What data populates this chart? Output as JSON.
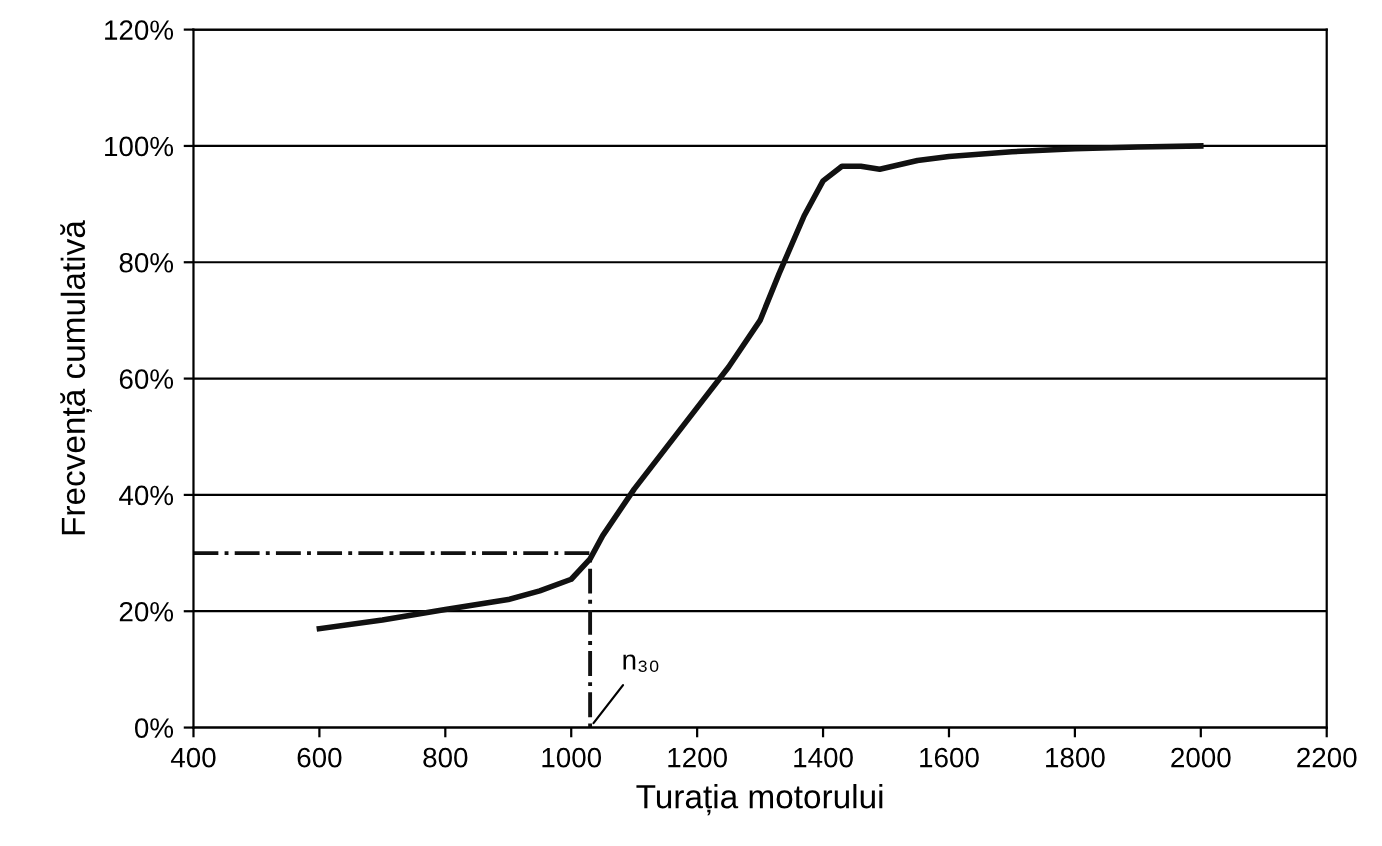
{
  "chart_data": {
    "type": "line",
    "xlabel": "Turația motorului",
    "ylabel": "Frecvență cumulativă",
    "xlim": [
      400,
      2200
    ],
    "xticks": [
      400,
      600,
      800,
      1000,
      1200,
      1400,
      1600,
      1800,
      2000,
      2200
    ],
    "ylim": [
      0,
      120
    ],
    "yticks": [
      {
        "value": 0,
        "label": "0%"
      },
      {
        "value": 20,
        "label": "20%"
      },
      {
        "value": 40,
        "label": "40%"
      },
      {
        "value": 60,
        "label": "60%"
      },
      {
        "value": 80,
        "label": "80%"
      },
      {
        "value": 100,
        "label": "100%"
      },
      {
        "value": 120,
        "label": "120%"
      }
    ],
    "grid": "y",
    "legend": false,
    "marker": "none",
    "series": [
      {
        "color": "#111111",
        "line_style": "solid",
        "x": [
          600,
          700,
          800,
          900,
          950,
          1000,
          1030,
          1050,
          1100,
          1150,
          1200,
          1250,
          1300,
          1330,
          1370,
          1400,
          1430,
          1460,
          1490,
          1550,
          1600,
          1700,
          1800,
          1900,
          2000
        ],
        "values": [
          17,
          18.5,
          20.3,
          22,
          23.5,
          25.5,
          29,
          33,
          41,
          48,
          55,
          62,
          70,
          78,
          88,
          94,
          96.5,
          96.5,
          96,
          97.5,
          98.2,
          99,
          99.5,
          99.8,
          100
        ]
      },
      {
        "color": "#111111",
        "line_style": "dashed",
        "x": [
          400,
          1030,
          1030
        ],
        "values": [
          30,
          30,
          0
        ]
      }
    ],
    "annotations": [
      {
        "text": "n₃₀",
        "x": 1030,
        "y": 0
      }
    ]
  }
}
